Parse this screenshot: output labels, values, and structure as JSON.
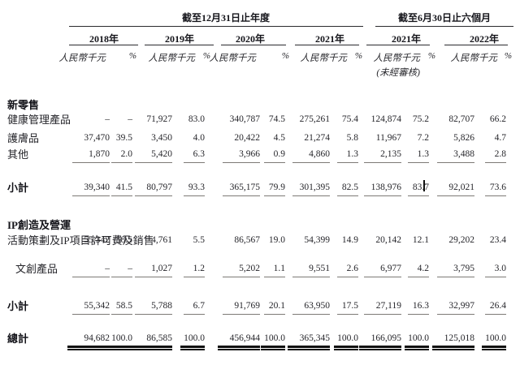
{
  "table": {
    "percent_symbol": "%",
    "period_groups": [
      {
        "label": "截至12月31日止年度"
      },
      {
        "label": "截至6月30日止六個月"
      }
    ],
    "year_columns": [
      {
        "year": "2018年",
        "unit": "人民幣千元"
      },
      {
        "year": "2019年",
        "unit": "人民幣千元"
      },
      {
        "year": "2020年",
        "unit": "人民幣千元"
      },
      {
        "year": "2021年",
        "unit": "人民幣千元"
      },
      {
        "year": "2021年",
        "unit": "人民幣千元",
        "note": "(未經審核)"
      },
      {
        "year": "2022年",
        "unit": "人民幣千元"
      }
    ],
    "rows": [
      {
        "type": "section",
        "label": "新零售",
        "values": []
      },
      {
        "type": "data",
        "label": "健康管理產品",
        "values": [
          "–",
          "–",
          "71,927",
          "83.0",
          "340,787",
          "74.5",
          "275,261",
          "75.4",
          "124,874",
          "75.2",
          "82,707",
          "66.2"
        ]
      },
      {
        "type": "data",
        "label": "護膚品",
        "values": [
          "37,470",
          "39.5",
          "3,450",
          "4.0",
          "20,422",
          "4.5",
          "21,274",
          "5.8",
          "11,967",
          "7.2",
          "5,826",
          "4.7"
        ]
      },
      {
        "type": "data",
        "label": "其他",
        "underline": true,
        "values": [
          "1,870",
          "2.0",
          "5,420",
          "6.3",
          "3,966",
          "0.9",
          "4,860",
          "1.3",
          "2,135",
          "1.3",
          "3,488",
          "2.8"
        ]
      },
      {
        "type": "subtotal",
        "label": "小計",
        "underline": true,
        "values": [
          "39,340",
          "41.5",
          "80,797",
          "93.3",
          "365,175",
          "79.9",
          "301,395",
          "82.5",
          "138,976",
          "83.7",
          "92,021",
          "73.6"
        ]
      },
      {
        "type": "section",
        "label": "IP創造及營運",
        "values": []
      },
      {
        "type": "data",
        "label": "活動策劃及IP項目",
        "label2": "許可費及銷售",
        "values": [
          "55,342",
          "58.5",
          "4,761",
          "5.5",
          "86,567",
          "19.0",
          "54,399",
          "14.9",
          "20,142",
          "12.1",
          "29,202",
          "23.4"
        ]
      },
      {
        "type": "data",
        "label": "文創產品",
        "indent": true,
        "underline": true,
        "values": [
          "–",
          "–",
          "1,027",
          "1.2",
          "5,202",
          "1.1",
          "9,551",
          "2.6",
          "6,977",
          "4.2",
          "3,795",
          "3.0"
        ]
      },
      {
        "type": "subtotal",
        "label": "小計",
        "underline": true,
        "values": [
          "55,342",
          "58.5",
          "5,788",
          "6.7",
          "91,769",
          "20.1",
          "63,950",
          "17.5",
          "27,119",
          "16.3",
          "32,997",
          "26.4"
        ]
      },
      {
        "type": "total",
        "label": "總計",
        "double_rule": true,
        "values": [
          "94,682",
          "100.0",
          "86,585",
          "100.0",
          "456,944",
          "100.0",
          "365,345",
          "100.0",
          "166,095",
          "100.0",
          "125,018",
          "100.0"
        ]
      }
    ]
  },
  "ui": {
    "text_cursor_visible": true
  }
}
